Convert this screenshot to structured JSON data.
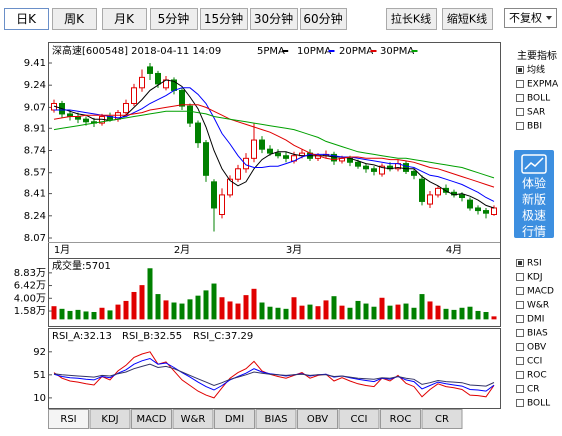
{
  "toolbar": {
    "period_tabs": [
      "日K",
      "周K",
      "月K",
      "5分钟",
      "15分钟",
      "30分钟",
      "60分钟"
    ],
    "selected_tab": 0,
    "zoom_buttons": [
      "拉长K线",
      "缩短K线"
    ],
    "adjust_select": "不复权"
  },
  "chart_data": [
    {
      "type": "candlestick",
      "title": "深高速[600548] 2018-04-11 14:09",
      "categories": [
        null,
        "1月",
        null,
        null,
        null,
        null,
        null,
        null,
        null,
        null,
        null,
        null,
        null,
        null,
        null,
        null,
        "2月",
        null,
        null,
        null,
        null,
        null,
        null,
        null,
        null,
        null,
        null,
        null,
        null,
        null,
        "3月",
        null,
        null,
        null,
        null,
        null,
        null,
        null,
        null,
        null,
        null,
        null,
        null,
        null,
        null,
        null,
        null,
        null,
        null,
        null,
        "4月",
        null,
        null,
        null,
        null,
        null
      ],
      "open": [
        9.05,
        9.1,
        9.02,
        9.0,
        8.98,
        8.96,
        8.95,
        9.0,
        8.98,
        9.03,
        9.1,
        9.22,
        9.38,
        9.33,
        9.22,
        9.28,
        9.2,
        9.08,
        8.95,
        8.8,
        8.5,
        8.25,
        8.4,
        8.52,
        8.6,
        8.68,
        8.82,
        8.75,
        8.72,
        8.7,
        8.66,
        8.7,
        8.72,
        8.68,
        8.7,
        8.71,
        8.66,
        8.68,
        8.65,
        8.62,
        8.6,
        8.56,
        8.62,
        8.6,
        8.64,
        8.58,
        8.52,
        8.33,
        8.4,
        8.45,
        8.42,
        8.4,
        8.36,
        8.3,
        8.28,
        8.25
      ],
      "high": [
        9.13,
        9.12,
        9.05,
        9.03,
        9.0,
        8.99,
        9.02,
        9.03,
        9.05,
        9.13,
        9.25,
        9.36,
        9.41,
        9.35,
        9.31,
        9.3,
        9.22,
        9.1,
        8.97,
        8.82,
        8.52,
        8.45,
        8.55,
        8.63,
        8.72,
        8.95,
        8.85,
        8.78,
        8.75,
        8.73,
        8.73,
        8.75,
        8.75,
        8.72,
        8.74,
        8.73,
        8.7,
        8.7,
        8.67,
        8.64,
        8.62,
        8.64,
        8.65,
        8.67,
        8.66,
        8.6,
        8.55,
        8.43,
        8.47,
        8.48,
        8.44,
        8.42,
        8.38,
        8.32,
        8.3,
        8.32
      ],
      "low": [
        9.03,
        8.99,
        8.97,
        8.95,
        8.93,
        8.92,
        8.93,
        8.96,
        8.96,
        9.01,
        9.08,
        9.19,
        9.28,
        9.22,
        9.2,
        9.17,
        9.05,
        8.92,
        8.76,
        8.5,
        8.12,
        8.22,
        8.38,
        8.5,
        8.57,
        8.65,
        8.72,
        8.7,
        8.68,
        8.65,
        8.64,
        8.68,
        8.66,
        8.66,
        8.68,
        8.63,
        8.64,
        8.62,
        8.6,
        8.57,
        8.55,
        8.54,
        8.58,
        8.58,
        8.56,
        8.52,
        8.32,
        8.3,
        8.38,
        8.4,
        8.38,
        8.35,
        8.28,
        8.25,
        8.22,
        8.24
      ],
      "close": [
        9.1,
        9.02,
        9.0,
        8.98,
        8.96,
        8.95,
        9.0,
        8.98,
        9.03,
        9.1,
        9.22,
        9.3,
        9.33,
        9.25,
        9.28,
        9.2,
        9.08,
        8.95,
        8.8,
        8.55,
        8.3,
        8.4,
        8.52,
        8.6,
        8.68,
        8.82,
        8.75,
        8.72,
        8.7,
        8.68,
        8.7,
        8.72,
        8.68,
        8.7,
        8.71,
        8.66,
        8.68,
        8.65,
        8.62,
        8.6,
        8.58,
        8.62,
        8.6,
        8.64,
        8.58,
        8.55,
        8.35,
        8.4,
        8.45,
        8.42,
        8.4,
        8.38,
        8.3,
        8.28,
        8.26,
        8.3
      ],
      "up_color": "#e00000",
      "down_color": "#008000",
      "series": [
        {
          "name": "5PMA",
          "color": "#000000",
          "values": [
            9.08,
            9.06,
            9.04,
            9.02,
            9.01,
            8.98,
            8.98,
            8.97,
            8.98,
            9.01,
            9.07,
            9.13,
            9.2,
            9.24,
            9.28,
            9.27,
            9.23,
            9.15,
            9.06,
            8.92,
            8.74,
            8.6,
            8.51,
            8.47,
            8.5,
            8.6,
            8.67,
            8.71,
            8.73,
            8.73,
            8.71,
            8.7,
            8.7,
            8.7,
            8.7,
            8.69,
            8.69,
            8.68,
            8.66,
            8.64,
            8.63,
            8.61,
            8.6,
            8.61,
            8.6,
            8.6,
            8.54,
            8.5,
            8.47,
            8.43,
            8.4,
            8.41,
            8.39,
            8.36,
            8.32,
            8.3
          ]
        },
        {
          "name": "10PMA",
          "color": "#0000ff",
          "values": [
            9.05,
            9.05,
            9.05,
            9.04,
            9.03,
            9.02,
            9.01,
            9.0,
            8.99,
            9.0,
            9.03,
            9.06,
            9.1,
            9.13,
            9.16,
            9.2,
            9.22,
            9.22,
            9.17,
            9.1,
            8.99,
            8.87,
            8.79,
            8.7,
            8.63,
            8.61,
            8.61,
            8.62,
            8.62,
            8.64,
            8.66,
            8.69,
            8.71,
            8.71,
            8.71,
            8.7,
            8.69,
            8.69,
            8.68,
            8.67,
            8.66,
            8.65,
            8.64,
            8.64,
            8.62,
            8.61,
            8.58,
            8.55,
            8.54,
            8.52,
            8.5,
            8.48,
            8.45,
            8.42,
            8.38,
            8.35
          ]
        },
        {
          "name": "20PMA",
          "color": "#e00000",
          "values": [
            8.98,
            8.99,
            9.0,
            9.0,
            9.01,
            9.01,
            9.01,
            9.01,
            9.01,
            9.01,
            9.02,
            9.03,
            9.05,
            9.06,
            9.07,
            9.08,
            9.09,
            9.09,
            9.09,
            9.07,
            9.04,
            9.01,
            8.98,
            8.96,
            8.94,
            8.92,
            8.9,
            8.88,
            8.85,
            8.82,
            8.78,
            8.75,
            8.72,
            8.7,
            8.68,
            8.67,
            8.68,
            8.69,
            8.69,
            8.68,
            8.68,
            8.68,
            8.67,
            8.67,
            8.66,
            8.65,
            8.63,
            8.61,
            8.6,
            8.58,
            8.56,
            8.54,
            8.52,
            8.5,
            8.48,
            8.46
          ]
        },
        {
          "name": "30PMA",
          "color": "#00a000",
          "values": [
            8.9,
            8.91,
            8.92,
            8.93,
            8.94,
            8.95,
            8.96,
            8.97,
            8.98,
            8.99,
            9.0,
            9.01,
            9.02,
            9.03,
            9.04,
            9.04,
            9.04,
            9.04,
            9.03,
            9.02,
            9.0,
            8.99,
            8.98,
            8.97,
            8.96,
            8.95,
            8.94,
            8.93,
            8.92,
            8.91,
            8.9,
            8.88,
            8.86,
            8.84,
            8.81,
            8.79,
            8.77,
            8.75,
            8.73,
            8.72,
            8.71,
            8.7,
            8.69,
            8.68,
            8.68,
            8.67,
            8.66,
            8.65,
            8.64,
            8.63,
            8.62,
            8.61,
            8.59,
            8.57,
            8.55,
            8.53
          ]
        }
      ],
      "ylim": [
        8.07,
        9.41
      ],
      "yticks": [
        9.41,
        9.24,
        9.07,
        8.91,
        8.74,
        8.57,
        8.41,
        8.24,
        8.07
      ],
      "grid": false
    },
    {
      "type": "bar",
      "title": "成交量:5701",
      "values": [
        2.5,
        2.0,
        1.6,
        1.8,
        1.5,
        1.4,
        2.2,
        1.7,
        2.8,
        3.5,
        5.2,
        6.5,
        9.7,
        4.8,
        3.6,
        3.2,
        3.0,
        3.8,
        4.5,
        5.5,
        6.8,
        4.2,
        3.4,
        3.0,
        4.6,
        5.8,
        3.2,
        2.4,
        2.2,
        2.0,
        4.2,
        2.6,
        2.8,
        2.5,
        3.6,
        4.4,
        2.6,
        2.2,
        3.5,
        3.0,
        2.4,
        4.1,
        2.6,
        2.8,
        3.0,
        2.2,
        4.8,
        3.4,
        2.6,
        2.0,
        1.8,
        2.2,
        2.4,
        1.6,
        1.4,
        0.57
      ],
      "up_color": "#e00000",
      "down_color": "#008000",
      "ylim": [
        -0.5,
        10.7
      ],
      "yticks": [
        {
          "value": 8.83,
          "label": "8.83万"
        },
        {
          "value": 6.42,
          "label": "6.42万"
        },
        {
          "value": 4.0,
          "label": "4.00万"
        },
        {
          "value": 1.58,
          "label": "1.58万"
        }
      ],
      "grid": false
    },
    {
      "type": "line",
      "series": [
        {
          "name": "RSI_A:32.13",
          "color": "#e00000",
          "values": [
            55,
            45,
            40,
            38,
            35,
            33,
            48,
            42,
            58,
            68,
            82,
            88,
            92,
            70,
            74,
            58,
            42,
            32,
            22,
            15,
            10,
            28,
            45,
            55,
            62,
            75,
            58,
            52,
            48,
            45,
            50,
            55,
            45,
            50,
            52,
            40,
            46,
            40,
            35,
            32,
            30,
            45,
            40,
            50,
            36,
            30,
            12,
            25,
            35,
            30,
            28,
            25,
            15,
            14,
            12,
            32.13
          ]
        },
        {
          "name": "RSI_B:32.55",
          "color": "#0000ff",
          "values": [
            52,
            48,
            46,
            45,
            43,
            42,
            48,
            46,
            54,
            60,
            70,
            76,
            80,
            70,
            72,
            64,
            55,
            47,
            38,
            30,
            24,
            32,
            42,
            48,
            54,
            62,
            56,
            53,
            51,
            49,
            51,
            53,
            49,
            51,
            52,
            47,
            49,
            46,
            43,
            41,
            39,
            45,
            43,
            48,
            42,
            39,
            26,
            32,
            38,
            35,
            33,
            31,
            25,
            24,
            22,
            32.55
          ]
        },
        {
          "name": "RSI_C:37.29",
          "color": "#333366",
          "values": [
            53,
            51,
            50,
            49,
            48,
            47,
            50,
            49,
            53,
            56,
            62,
            66,
            70,
            64,
            66,
            62,
            56,
            50,
            44,
            38,
            32,
            37,
            43,
            47,
            51,
            56,
            54,
            52,
            51,
            50,
            51,
            52,
            50,
            51,
            51,
            48,
            49,
            47,
            45,
            44,
            43,
            46,
            45,
            48,
            45,
            43,
            34,
            37,
            41,
            39,
            38,
            37,
            33,
            32,
            31,
            37.29
          ]
        }
      ],
      "ylim": [
        -8,
        113
      ],
      "yticks": [
        92,
        51,
        10
      ],
      "grid": false
    }
  ],
  "sidebar": {
    "main_title": "主要指标",
    "main_options": [
      "均线",
      "EXPMA",
      "BOLL",
      "SAR",
      "BBI"
    ],
    "main_checked": 0,
    "promo": [
      "体验",
      "新版",
      "极速",
      "行情"
    ],
    "sub_options": [
      "RSI",
      "KDJ",
      "MACD",
      "W&R",
      "DMI",
      "BIAS",
      "OBV",
      "CCI",
      "ROC",
      "CR",
      "BOLL"
    ],
    "sub_checked": 0
  },
  "indicator_tabs": [
    "RSI",
    "KDJ",
    "MACD",
    "W&R",
    "DMI",
    "BIAS",
    "OBV",
    "CCI",
    "ROC",
    "CR"
  ],
  "selected_indicator": 0
}
